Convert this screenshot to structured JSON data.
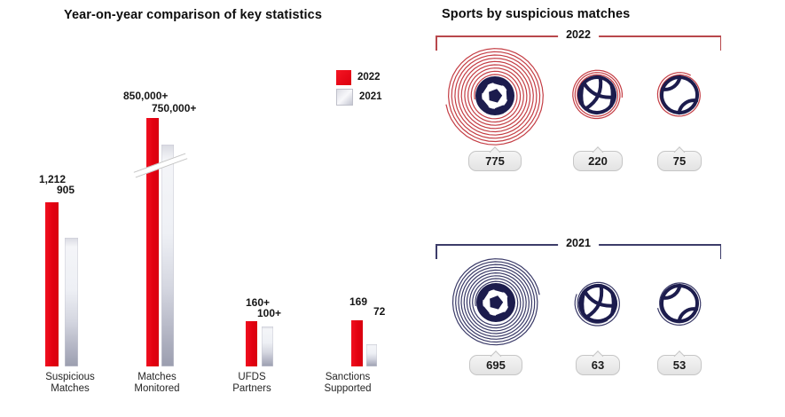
{
  "colors": {
    "red_2022": "#e80011",
    "silver_2021": "#c9cbd6",
    "navy_icon": "#1c1c4d",
    "ring_red": "#c43d44",
    "ring_navy": "#3a3a68",
    "badge_bg": "#ececec"
  },
  "left": {
    "title": "Year-on-year comparison of key statistics",
    "legend": [
      {
        "label": "2022"
      },
      {
        "label": "2021"
      }
    ],
    "groups": [
      {
        "line1": "Suspicious",
        "line2": "Matches",
        "value_2022": "1,212",
        "value_2021": "905"
      },
      {
        "line1": "Matches",
        "line2": "Monitored",
        "value_2022": "850,000+",
        "value_2021": "750,000+"
      },
      {
        "line1": "UFDS",
        "line2": "Partners",
        "value_2022": "160+",
        "value_2021": "100+"
      },
      {
        "line1": "Sanctions",
        "line2": "Supported",
        "value_2022": "169",
        "value_2021": "72"
      }
    ]
  },
  "right": {
    "title": "Sports by suspicious matches",
    "sections": [
      {
        "year": "2022",
        "counts": [
          "775",
          "220",
          "75"
        ]
      },
      {
        "year": "2021",
        "counts": [
          "695",
          "63",
          "53"
        ]
      }
    ],
    "sports": [
      "football",
      "basketball",
      "tennis"
    ]
  },
  "chart_data": [
    {
      "type": "bar",
      "title": "Year-on-year comparison of key statistics",
      "categories": [
        "Suspicious Matches",
        "Matches Monitored",
        "UFDS Partners",
        "Sanctions Supported"
      ],
      "series": [
        {
          "name": "2022",
          "values": [
            1212,
            850000,
            160,
            169
          ],
          "labels": [
            "1,212",
            "850,000+",
            "160+",
            "169"
          ],
          "color": "#e80011"
        },
        {
          "name": "2021",
          "values": [
            905,
            750000,
            100,
            72
          ],
          "labels": [
            "905",
            "750,000+",
            "100+",
            "72"
          ],
          "color": "#c9cbd6"
        }
      ],
      "legend_position": "top-right",
      "grid": false,
      "axes_shown": false,
      "notes": "Axis break mark across the Matches Monitored bars; values shown as data labels above bars"
    },
    {
      "type": "bar",
      "title": "Sports by suspicious matches",
      "categories": [
        "Football",
        "Basketball",
        "Tennis"
      ],
      "series": [
        {
          "name": "2022",
          "values": [
            775,
            220,
            75
          ],
          "color": "#c43d44"
        },
        {
          "name": "2021",
          "values": [
            695,
            63,
            53
          ],
          "color": "#3a3a68"
        }
      ],
      "notes": "Rendered as sport-ball icons wrapped by spiral rings sized by value; counts in gray badges below each icon"
    }
  ]
}
